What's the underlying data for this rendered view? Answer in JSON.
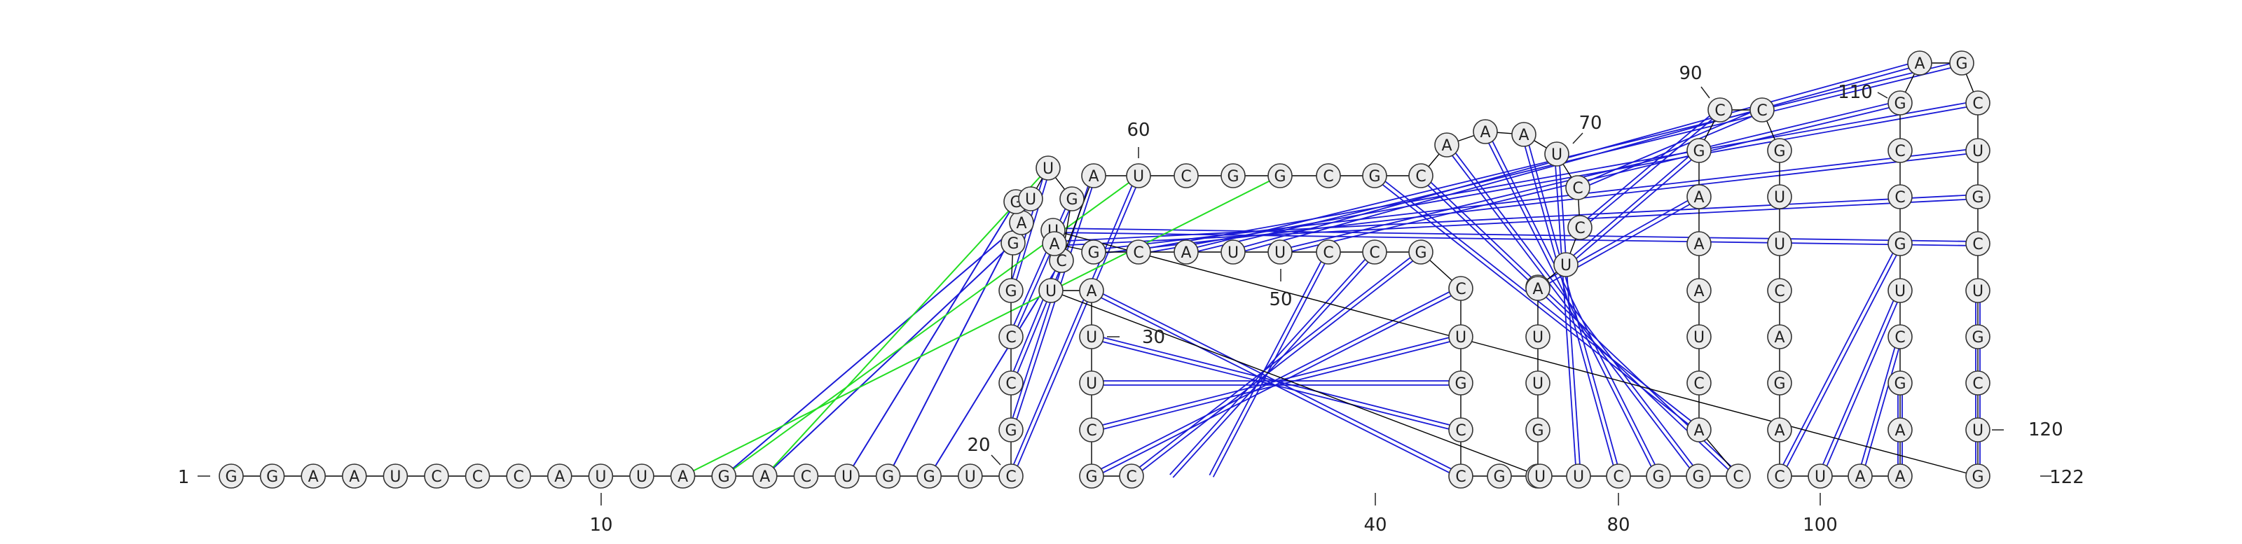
{
  "sequence": "GGAAUCCCAUUAGACUGGUCGCCGGAGUUGCAUCGGCGCAAAUCCUCAUUGGUCGGCACUAAAGCCGUUCAGACUAAAGCUGCCGAGCUGCUGCUGUAGCAUUCCGCUGCCGUUAUUCGC",
  "sequence_length": 122,
  "labels": {
    "start": "1",
    "end": "122",
    "ticks": [
      {
        "text": "10",
        "nt": 10
      },
      {
        "text": "20",
        "nt": 20
      },
      {
        "text": "30",
        "nt": 30
      },
      {
        "text": "40",
        "nt": 40
      },
      {
        "text": "50",
        "nt": 50
      },
      {
        "text": "60",
        "nt": 60
      },
      {
        "text": "70",
        "nt": 70
      },
      {
        "text": "80",
        "nt": 80
      },
      {
        "text": "90",
        "nt": 90
      },
      {
        "text": "100",
        "nt": 100
      },
      {
        "text": "110",
        "nt": 110
      },
      {
        "text": "120",
        "nt": 120
      }
    ]
  },
  "colors": {
    "canonical_pair": "#1a1ad6",
    "wobble_pair": "#1a1ad6",
    "pseudoknot": "#22dd22",
    "backbone": "#000000",
    "nucleotide_fill": "#ececec",
    "nucleotide_stroke": "#333333"
  },
  "helices": [
    {
      "name": "stem-1",
      "pairs": [
        [
          20,
          33
        ],
        [
          21,
          32
        ],
        [
          22,
          31
        ],
        [
          23,
          30
        ],
        [
          24,
          29
        ]
      ]
    },
    {
      "name": "stem-2",
      "pairs": [
        [
          38,
          58
        ],
        [
          39,
          57
        ],
        [
          40,
          56
        ],
        [
          41,
          55
        ],
        [
          42,
          54
        ],
        [
          43,
          53
        ]
      ]
    },
    {
      "name": "stem-3",
      "pairs": [
        [
          44,
          66
        ],
        [
          45,
          65
        ],
        [
          46,
          64
        ],
        [
          47,
          63
        ]
      ]
    },
    {
      "name": "stem-4",
      "pairs": [
        [
          74,
          82
        ],
        [
          75,
          81
        ],
        [
          76,
          80
        ],
        [
          77,
          79
        ]
      ]
    },
    {
      "name": "stem-5",
      "pairs": [
        [
          85,
          103
        ],
        [
          86,
          102
        ],
        [
          87,
          101
        ],
        [
          88,
          100
        ],
        [
          89,
          99
        ],
        [
          90,
          98
        ],
        [
          91,
          97
        ],
        [
          92,
          96
        ]
      ]
    },
    {
      "name": "stem-6",
      "pairs": [
        [
          104,
          122
        ],
        [
          105,
          121
        ],
        [
          106,
          120
        ],
        [
          107,
          119
        ],
        [
          108,
          118
        ],
        [
          109,
          117
        ],
        [
          110,
          116
        ],
        [
          111,
          115
        ]
      ]
    }
  ],
  "wobble_pairs": [
    [
      54,
      38
    ],
    [
      93,
      95
    ],
    [
      112,
      114
    ],
    [
      108,
      118
    ],
    [
      110,
      116
    ]
  ],
  "pseudoknots": [
    [
      13,
      33
    ],
    [
      14,
      29
    ],
    [
      12,
      36
    ]
  ],
  "tertiary_contacts": [
    [
      13,
      26
    ],
    [
      14,
      25
    ],
    [
      16,
      27
    ],
    [
      17,
      28
    ],
    [
      18,
      31
    ]
  ]
}
